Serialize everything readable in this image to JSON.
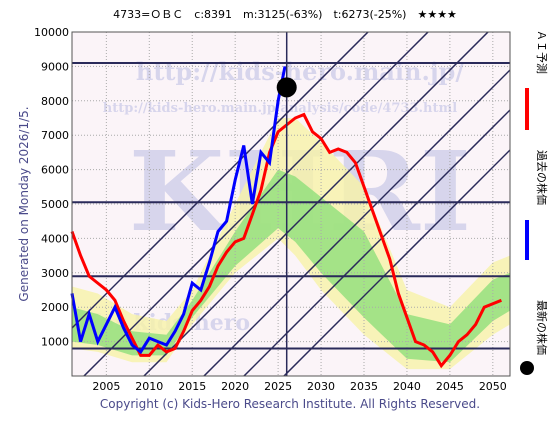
{
  "chart_data": {
    "type": "line",
    "title": "4733=ＯＢＣ　c:8391　m:3125(-63%)　t:6273(-25%)　★★★★",
    "side_label": "Generated on Monday 2026/1/5.",
    "footer": "Copyright (c) Kids-Hero Research Institute. All Rights Reserved.",
    "watermarks": [
      "http://kids-hero.main.jp/",
      "http://kids-hero.main.jp/analysis/code/4733.html",
      "KHRI",
      "for kids-hero"
    ],
    "xlim": [
      2001,
      2052
    ],
    "ylim": [
      0,
      10000
    ],
    "xticks": [
      2005,
      2010,
      2015,
      2020,
      2025,
      2030,
      2035,
      2040,
      2045,
      2050
    ],
    "yticks": [
      1000,
      2000,
      3000,
      4000,
      5000,
      6000,
      7000,
      8000,
      9000,
      10000
    ],
    "grid": true,
    "hlines": [
      9100,
      5050,
      2900,
      800
    ],
    "bands": [
      {
        "color": "#f7f3a8",
        "x": [
          2001,
          2004,
          2008,
          2012,
          2015,
          2020,
          2025,
          2027,
          2030,
          2035,
          2040,
          2045,
          2050,
          2052
        ],
        "upper": [
          2600,
          2400,
          1800,
          1600,
          2500,
          5000,
          7500,
          7500,
          6800,
          5500,
          2500,
          2000,
          3300,
          3500
        ],
        "lower": [
          800,
          700,
          400,
          400,
          1500,
          3000,
          4000,
          3500,
          2500,
          1200,
          200,
          200,
          1200,
          1500
        ]
      },
      {
        "color": "#8ede7a",
        "x": [
          2001,
          2004,
          2008,
          2012,
          2015,
          2020,
          2025,
          2027,
          2030,
          2035,
          2040,
          2045,
          2050,
          2052
        ],
        "upper": [
          2000,
          1800,
          1300,
          1200,
          2200,
          4200,
          6000,
          5800,
          5200,
          4200,
          1800,
          1500,
          2800,
          3000
        ],
        "lower": [
          1000,
          900,
          600,
          600,
          1700,
          3200,
          4300,
          3900,
          3000,
          1700,
          500,
          400,
          1600,
          1900
        ]
      }
    ],
    "series": [
      {
        "name": "ＡＩ予測",
        "color": "#ff0000",
        "x": [
          2001,
          2002,
          2003,
          2004,
          2005,
          2006,
          2007,
          2008,
          2009,
          2010,
          2011,
          2012,
          2013,
          2014,
          2015,
          2016,
          2017,
          2018,
          2019,
          2020,
          2021,
          2022,
          2023,
          2024,
          2025,
          2026,
          2027,
          2028,
          2029,
          2030,
          2031,
          2032,
          2033,
          2034,
          2035,
          2036,
          2037,
          2038,
          2039,
          2040,
          2041,
          2042,
          2043,
          2044,
          2045,
          2046,
          2047,
          2048,
          2049,
          2050,
          2051
        ],
        "values": [
          4200,
          3500,
          2900,
          2700,
          2500,
          2200,
          1600,
          1100,
          600,
          600,
          900,
          700,
          800,
          1300,
          1900,
          2200,
          2600,
          3200,
          3600,
          3900,
          4000,
          4700,
          5400,
          6500,
          7100,
          7300,
          7500,
          7600,
          7100,
          6900,
          6500,
          6600,
          6500,
          6200,
          5500,
          4800,
          4100,
          3400,
          2400,
          1700,
          1000,
          900,
          700,
          300,
          600,
          1000,
          1200,
          1500,
          2000,
          2100,
          2200
        ]
      },
      {
        "name": "過去の株価",
        "color": "#0000ff",
        "x": [
          2001,
          2002,
          2003,
          2004,
          2005,
          2006,
          2007,
          2008,
          2009,
          2010,
          2011,
          2012,
          2013,
          2014,
          2015,
          2016,
          2017,
          2018,
          2019,
          2020,
          2021,
          2022,
          2023,
          2024,
          2025,
          2025.8
        ],
        "values": [
          2400,
          1000,
          1800,
          1000,
          1500,
          2000,
          1400,
          900,
          700,
          1100,
          1000,
          900,
          1300,
          1800,
          2700,
          2500,
          3300,
          4200,
          4500,
          5700,
          6700,
          5000,
          6500,
          6200,
          8000,
          9000
        ]
      },
      {
        "name": "最新の株価",
        "color": "#000000",
        "type": "scatter",
        "x": [
          2026
        ],
        "values": [
          8391
        ]
      }
    ]
  }
}
